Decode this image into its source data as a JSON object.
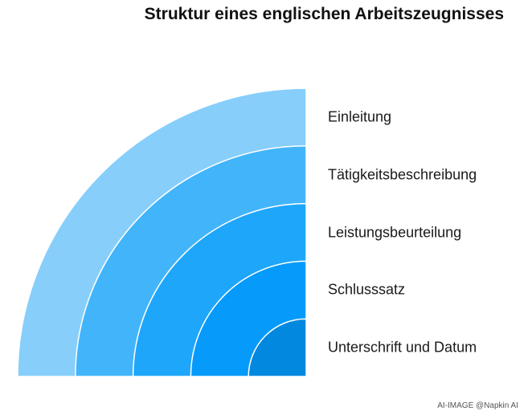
{
  "title": "Struktur eines englischen Arbeitszeugnisses",
  "layers": [
    {
      "label": "Einleitung",
      "color": "#87CEFB"
    },
    {
      "label": "Tätigkeitsbeschreibung",
      "color": "#42B4FA"
    },
    {
      "label": "Leistungsbeurteilung",
      "color": "#1EA6FA"
    },
    {
      "label": "Schlusssatz",
      "color": "#069AFB"
    },
    {
      "label": "Unterschrift und Datum",
      "color": "#0388DF"
    }
  ],
  "footer": "AI-IMAGE  @Napkin AI"
}
